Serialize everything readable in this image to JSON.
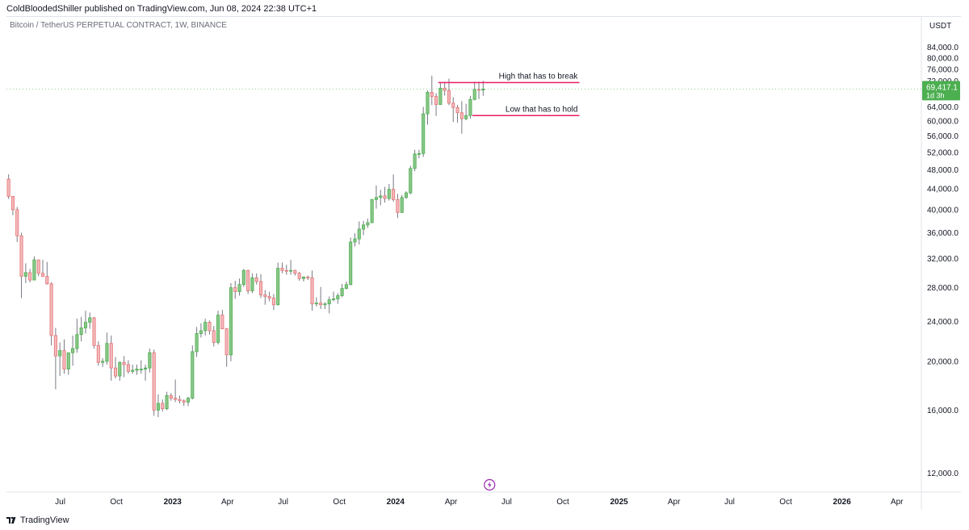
{
  "header": {
    "published_by": "ColdBloodedShiller published on TradingView.com, Jun 08, 2024 22:38 UTC+1",
    "symbol_line": "Bitcoin / TetherUS PERPETUAL CONTRACT, 1W, BINANCE"
  },
  "footer": {
    "brand": "TradingView",
    "logo_icon": "tradingview-logo-icon"
  },
  "colors": {
    "up": "#4caf50",
    "up_fill": "#8bc68a",
    "down": "#e57373",
    "down_fill": "#f3b9bd",
    "wick": "#787b86",
    "annotation_line": "#e91e63",
    "price_badge": "#4caf50"
  },
  "chart_data": {
    "type": "candlestick",
    "currency_label": "USDT",
    "y_scale": "log",
    "ylim": [
      11000,
      90000
    ],
    "y_ticks": [
      "84,000.0",
      "80,000.0",
      "76,000.0",
      "72,000.0",
      "64,000.0",
      "60,000.0",
      "56,000.0",
      "52,000.0",
      "48,000.0",
      "44,000.0",
      "40,000.0",
      "36,000.0",
      "32,000.0",
      "28,000.0",
      "24,000.0",
      "20,000.0",
      "16,000.0",
      "12,000.0"
    ],
    "y_tick_values": [
      84000,
      80000,
      76000,
      72000,
      64000,
      60000,
      56000,
      52000,
      48000,
      44000,
      40000,
      36000,
      32000,
      28000,
      24000,
      20000,
      16000,
      12000
    ],
    "x_axis_labels": [
      {
        "label": "Jul",
        "date": "2022-07-01",
        "bold": false
      },
      {
        "label": "Oct",
        "date": "2022-10-01",
        "bold": false
      },
      {
        "label": "2023",
        "date": "2023-01-01",
        "bold": true
      },
      {
        "label": "Apr",
        "date": "2023-04-01",
        "bold": false
      },
      {
        "label": "Jul",
        "date": "2023-07-01",
        "bold": false
      },
      {
        "label": "Oct",
        "date": "2023-10-01",
        "bold": false
      },
      {
        "label": "2024",
        "date": "2024-01-01",
        "bold": true
      },
      {
        "label": "Apr",
        "date": "2024-04-01",
        "bold": false
      },
      {
        "label": "Jul",
        "date": "2024-07-01",
        "bold": false
      },
      {
        "label": "Oct",
        "date": "2024-10-01",
        "bold": false
      },
      {
        "label": "2025",
        "date": "2025-01-01",
        "bold": true
      },
      {
        "label": "Apr",
        "date": "2025-04-01",
        "bold": false
      },
      {
        "label": "Jul",
        "date": "2025-07-01",
        "bold": false
      },
      {
        "label": "Oct",
        "date": "2025-10-01",
        "bold": false
      },
      {
        "label": "2026",
        "date": "2026-01-01",
        "bold": true
      },
      {
        "label": "Apr",
        "date": "2026-04-01",
        "bold": false
      }
    ],
    "x_range": [
      "2022-04-04",
      "2026-05-11"
    ],
    "last_price": {
      "value": "69,417.1",
      "countdown": "1d 3h",
      "price": 69417.1
    },
    "annotations": [
      {
        "text": "High that has to break",
        "price": 71500,
        "from": "2024-03-11",
        "to": "2024-10-28"
      },
      {
        "text": "Low that has to hold",
        "price": 61500,
        "from": "2024-05-06",
        "to": "2024-10-28"
      }
    ],
    "candles_start": "2022-04-04",
    "candles_interval_days": 7,
    "candles": [
      [
        46000,
        47000,
        42000,
        42500
      ],
      [
        42500,
        42500,
        39000,
        40000
      ],
      [
        40000,
        40500,
        34500,
        35500
      ],
      [
        35500,
        36000,
        26700,
        29500
      ],
      [
        29500,
        31300,
        28600,
        30000
      ],
      [
        30000,
        30500,
        28700,
        29000
      ],
      [
        29000,
        32300,
        29000,
        31800
      ],
      [
        31800,
        31800,
        29500,
        29900
      ],
      [
        29900,
        31800,
        29400,
        29500
      ],
      [
        29500,
        31500,
        28400,
        28500
      ],
      [
        28500,
        28700,
        21500,
        22500
      ],
      [
        22500,
        23300,
        17600,
        20500
      ],
      [
        20500,
        21800,
        18700,
        21000
      ],
      [
        21000,
        22100,
        18900,
        19300
      ],
      [
        19300,
        20700,
        18800,
        20800
      ],
      [
        20800,
        22500,
        19600,
        21200
      ],
      [
        21200,
        24300,
        20800,
        22600
      ],
      [
        22600,
        24500,
        21900,
        23300
      ],
      [
        23300,
        25200,
        22700,
        23900
      ],
      [
        23900,
        25000,
        23200,
        24400
      ],
      [
        24400,
        24500,
        21200,
        21500
      ],
      [
        21500,
        21900,
        19600,
        19900
      ],
      [
        19900,
        20300,
        19500,
        20000
      ],
      [
        20000,
        22800,
        19700,
        21700
      ],
      [
        21700,
        22500,
        18300,
        19400
      ],
      [
        19400,
        20400,
        18500,
        18700
      ],
      [
        18700,
        20000,
        18300,
        19900
      ],
      [
        19900,
        20500,
        18600,
        19700
      ],
      [
        19700,
        20100,
        18900,
        19100
      ],
      [
        19100,
        19700,
        18900,
        19200
      ],
      [
        19200,
        19700,
        18800,
        19300
      ],
      [
        19300,
        20100,
        18900,
        19300
      ],
      [
        19300,
        19700,
        18300,
        19400
      ],
      [
        19400,
        21200,
        19000,
        20800
      ],
      [
        20800,
        21100,
        15600,
        16000
      ],
      [
        16000,
        17200,
        15500,
        16500
      ],
      [
        16500,
        16800,
        15900,
        16100
      ],
      [
        16100,
        17400,
        16000,
        17100
      ],
      [
        17100,
        17300,
        16700,
        16900
      ],
      [
        16900,
        18400,
        16600,
        16800
      ],
      [
        16800,
        17100,
        16500,
        16700
      ],
      [
        16700,
        16800,
        16300,
        16600
      ],
      [
        16600,
        17000,
        16300,
        16900
      ],
      [
        16900,
        21500,
        16800,
        20900
      ],
      [
        20900,
        23400,
        20400,
        22700
      ],
      [
        22700,
        23800,
        22300,
        23000
      ],
      [
        23000,
        24300,
        22500,
        23900
      ],
      [
        23900,
        24100,
        22600,
        23000
      ],
      [
        23000,
        23500,
        21400,
        21800
      ],
      [
        21800,
        25200,
        21600,
        24700
      ],
      [
        24700,
        25300,
        23400,
        23200
      ],
      [
        23200,
        23300,
        19500,
        20600
      ],
      [
        20600,
        28600,
        20000,
        28000
      ],
      [
        28000,
        28900,
        26600,
        27500
      ],
      [
        27500,
        29200,
        27000,
        28400
      ],
      [
        28400,
        30500,
        28100,
        30300
      ],
      [
        30300,
        30400,
        27200,
        27600
      ],
      [
        27600,
        29900,
        27300,
        29300
      ],
      [
        29300,
        29900,
        28400,
        28800
      ],
      [
        28800,
        29800,
        26700,
        27100
      ],
      [
        27100,
        27700,
        25900,
        26900
      ],
      [
        26900,
        27500,
        26300,
        26700
      ],
      [
        26700,
        27200,
        25300,
        25900
      ],
      [
        25900,
        31400,
        25800,
        30600
      ],
      [
        30600,
        31400,
        29900,
        30300
      ],
      [
        30300,
        31100,
        29700,
        30200
      ],
      [
        30200,
        31800,
        29700,
        30300
      ],
      [
        30300,
        30400,
        29600,
        29900
      ],
      [
        29900,
        30100,
        28900,
        29200
      ],
      [
        29200,
        29500,
        28800,
        29400
      ],
      [
        29400,
        29600,
        29000,
        29300
      ],
      [
        29300,
        30300,
        25200,
        26000
      ],
      [
        26000,
        26800,
        25700,
        26100
      ],
      [
        26100,
        28100,
        25400,
        25900
      ],
      [
        25900,
        26200,
        25400,
        26000
      ],
      [
        26000,
        26900,
        24900,
        26500
      ],
      [
        26500,
        27500,
        26300,
        26600
      ],
      [
        26600,
        27300,
        26000,
        27000
      ],
      [
        27000,
        28500,
        26800,
        27900
      ],
      [
        27900,
        28800,
        27800,
        28400
      ],
      [
        28400,
        35200,
        28300,
        34500
      ],
      [
        34500,
        35900,
        33800,
        35000
      ],
      [
        35000,
        37900,
        34100,
        36600
      ],
      [
        36600,
        38000,
        35600,
        37300
      ],
      [
        37300,
        38400,
        36800,
        37700
      ],
      [
        37700,
        42000,
        37600,
        41900
      ],
      [
        41900,
        44700,
        40200,
        42300
      ],
      [
        42300,
        43800,
        40800,
        42600
      ],
      [
        42600,
        44400,
        41300,
        42100
      ],
      [
        42100,
        45000,
        41700,
        43900
      ],
      [
        43900,
        47000,
        41500,
        41900
      ],
      [
        41900,
        43000,
        38500,
        39500
      ],
      [
        39500,
        42800,
        39400,
        42300
      ],
      [
        42300,
        43500,
        42000,
        43200
      ],
      [
        43200,
        48900,
        42900,
        48300
      ],
      [
        48300,
        52600,
        47700,
        51600
      ],
      [
        51600,
        52600,
        50600,
        51700
      ],
      [
        51700,
        64000,
        50900,
        62000
      ],
      [
        62000,
        69000,
        59000,
        68400
      ],
      [
        68400,
        73800,
        64500,
        67100
      ],
      [
        67100,
        68100,
        61400,
        64700
      ],
      [
        64700,
        71700,
        64600,
        69700
      ],
      [
        69700,
        71800,
        67400,
        69000
      ],
      [
        69000,
        72800,
        64500,
        65100
      ],
      [
        65100,
        66900,
        59700,
        63800
      ],
      [
        63800,
        64600,
        59500,
        62300
      ],
      [
        62300,
        65700,
        56600,
        60600
      ],
      [
        60600,
        64900,
        60200,
        61500
      ],
      [
        61500,
        67300,
        60600,
        66200
      ],
      [
        66200,
        71800,
        65900,
        69300
      ],
      [
        69300,
        71800,
        66300,
        69100
      ],
      [
        69100,
        72100,
        67300,
        69417.1
      ]
    ]
  }
}
